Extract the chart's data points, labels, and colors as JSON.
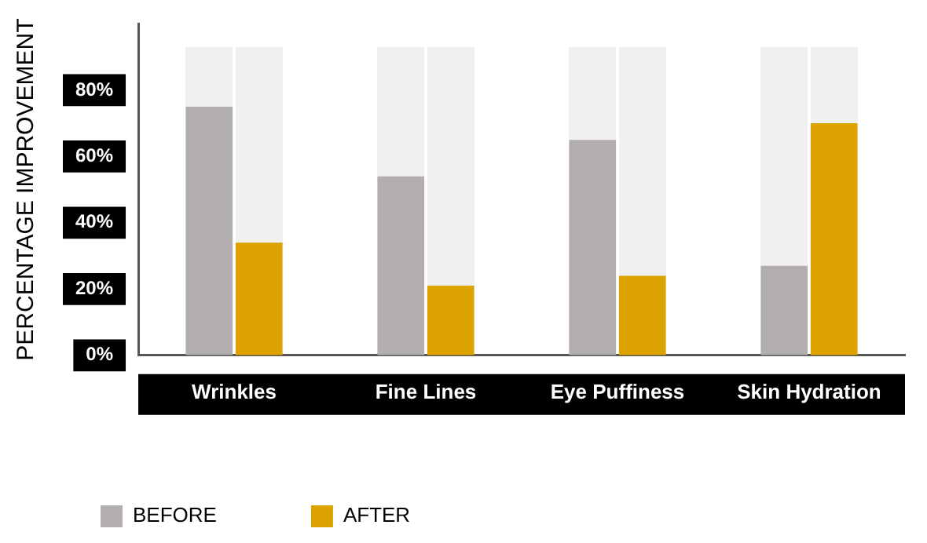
{
  "chart_data": {
    "type": "bar",
    "ylabel": "PERCENTAGE IMPROVEMENT",
    "categories": [
      "Wrinkles",
      "Fine Lines",
      "Eye Puffiness",
      "Skin Hydration"
    ],
    "series": [
      {
        "name": "BEFORE",
        "color": "#b3aeae",
        "values": [
          75,
          54,
          65,
          27
        ]
      },
      {
        "name": "AFTER",
        "color": "#dca300",
        "values": [
          34,
          21,
          24,
          70
        ]
      }
    ],
    "ylim": [
      0,
      100
    ],
    "yticks": [
      {
        "value": 0,
        "label": "0%"
      },
      {
        "value": 20,
        "label": "20%"
      },
      {
        "value": 40,
        "label": "40%"
      },
      {
        "value": 60,
        "label": "60%"
      },
      {
        "value": 80,
        "label": "80%"
      }
    ],
    "grid": false,
    "legend": "bottom left"
  }
}
